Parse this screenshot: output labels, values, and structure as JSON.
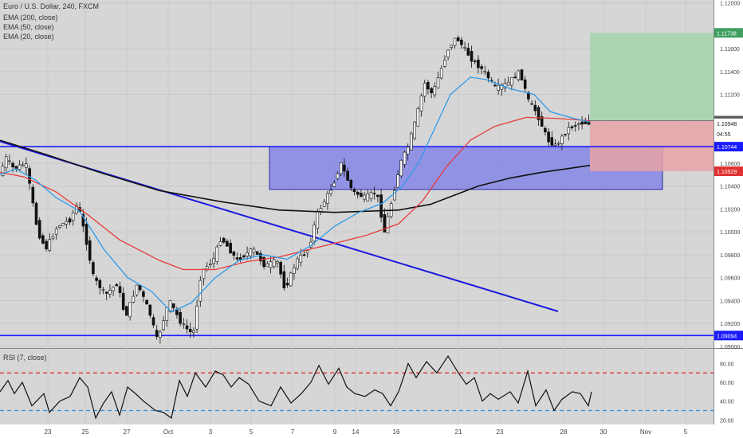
{
  "chart_data": [
    {
      "type": "line",
      "panel": "price",
      "title": "Euro / U.S. Dollar, 240, FXCM",
      "ylim": [
        1.08985,
        1.12025
      ],
      "x_ticks": [
        "23",
        "25",
        "27",
        "Oct",
        "3",
        "5",
        "7",
        "9",
        "14",
        "16",
        "21",
        "23",
        "28",
        "30",
        "Nov",
        "5"
      ],
      "y_ticks": [
        "1.12000",
        "1.11600",
        "1.11400",
        "1.11200",
        "1.10600",
        "1.10400",
        "1.10200",
        "1.10000",
        "1.09800",
        "1.09600",
        "1.09400",
        "1.09200",
        "1.09000"
      ],
      "legend": [
        "EMA (200, close)",
        "EMA (50, close)",
        "EMA (20, close)"
      ],
      "price_tags": [
        {
          "label": "1.11738",
          "value": 1.11738,
          "color": "#3f9f5f"
        },
        {
          "label": "1.10971",
          "value": 1.10971,
          "color": "#5a5a5a"
        },
        {
          "label": "1.10948",
          "value": 1.10948,
          "color": "#ffffff",
          "text_color": "#222222"
        },
        {
          "label": "04:55",
          "value": 1.10855,
          "color": "#ffffff",
          "text_color": "#222222"
        },
        {
          "label": "1.10744",
          "value": 1.10744,
          "color": "#1a1aff"
        },
        {
          "label": "1.10529",
          "value": 1.10529,
          "color": "#e03131"
        },
        {
          "label": "1.09094",
          "value": 1.09094,
          "color": "#1a1aff"
        }
      ],
      "horizontal_lines": [
        {
          "value": 1.10744,
          "color": "#1a1aff"
        },
        {
          "value": 1.09094,
          "color": "#1a1aff"
        }
      ],
      "trendline": {
        "from": [
          0,
          1.1079
        ],
        "to": [
          700,
          1.09305
        ],
        "color": "#1a1adf"
      },
      "zone": {
        "x0": 338,
        "x1": 831,
        "y0": 1.10744,
        "y1": 1.1037,
        "color": "#7b7bea"
      },
      "target_box": {
        "x0": 740,
        "x1": 895,
        "y0": 1.11738,
        "y1": 1.10971,
        "color": "#a6d5ad"
      },
      "stop_box": {
        "x0": 740,
        "x1": 895,
        "y0": 1.10971,
        "y1": 1.10529,
        "color": "#e8a3a8"
      },
      "ema200": [
        [
          0,
          1.108
        ],
        [
          60,
          1.1067
        ],
        [
          120,
          1.1053
        ],
        [
          200,
          1.1036
        ],
        [
          280,
          1.1026
        ],
        [
          350,
          1.1019
        ],
        [
          420,
          1.1017
        ],
        [
          500,
          1.1019
        ],
        [
          540,
          1.1024
        ],
        [
          570,
          1.1032
        ],
        [
          600,
          1.104
        ],
        [
          640,
          1.1047
        ],
        [
          680,
          1.1052
        ],
        [
          710,
          1.1055
        ],
        [
          740,
          1.1058
        ]
      ],
      "ema50": [
        [
          0,
          1.1052
        ],
        [
          30,
          1.1048
        ],
        [
          70,
          1.1035
        ],
        [
          110,
          1.1015
        ],
        [
          150,
          1.0993
        ],
        [
          200,
          1.0975
        ],
        [
          230,
          1.0967
        ],
        [
          270,
          1.0967
        ],
        [
          310,
          1.0974
        ],
        [
          350,
          1.0978
        ],
        [
          390,
          1.0985
        ],
        [
          420,
          1.099
        ],
        [
          460,
          1.0997
        ],
        [
          500,
          1.1007
        ],
        [
          530,
          1.1027
        ],
        [
          560,
          1.1057
        ],
        [
          590,
          1.108
        ],
        [
          620,
          1.1092
        ],
        [
          660,
          1.11
        ],
        [
          700,
          1.1099
        ],
        [
          740,
          1.1097
        ]
      ],
      "ema20": [
        [
          0,
          1.105
        ],
        [
          20,
          1.1055
        ],
        [
          45,
          1.1045
        ],
        [
          70,
          1.103
        ],
        [
          100,
          1.1018
        ],
        [
          130,
          1.0985
        ],
        [
          160,
          1.096
        ],
        [
          190,
          1.0948
        ],
        [
          215,
          1.093
        ],
        [
          240,
          1.0938
        ],
        [
          270,
          1.096
        ],
        [
          300,
          1.0975
        ],
        [
          330,
          1.098
        ],
        [
          360,
          1.0976
        ],
        [
          390,
          1.0988
        ],
        [
          420,
          1.1005
        ],
        [
          450,
          1.1017
        ],
        [
          480,
          1.1025
        ],
        [
          505,
          1.104
        ],
        [
          525,
          1.106
        ],
        [
          545,
          1.109
        ],
        [
          565,
          1.112
        ],
        [
          590,
          1.1135
        ],
        [
          610,
          1.1133
        ],
        [
          640,
          1.1125
        ],
        [
          670,
          1.112
        ],
        [
          690,
          1.1105
        ],
        [
          720,
          1.1099
        ],
        [
          740,
          1.1096
        ]
      ],
      "price_path": [
        [
          0,
          1.1045
        ],
        [
          10,
          1.1065
        ],
        [
          20,
          1.1055
        ],
        [
          35,
          1.106
        ],
        [
          50,
          1.1
        ],
        [
          60,
          1.0985
        ],
        [
          75,
          1.1005
        ],
        [
          90,
          1.101
        ],
        [
          100,
          1.1025
        ],
        [
          110,
          1.0995
        ],
        [
          120,
          1.096
        ],
        [
          135,
          1.0945
        ],
        [
          150,
          1.0955
        ],
        [
          160,
          1.0925
        ],
        [
          175,
          1.0955
        ],
        [
          190,
          1.093
        ],
        [
          200,
          1.0905
        ],
        [
          215,
          1.094
        ],
        [
          230,
          1.092
        ],
        [
          245,
          1.091
        ],
        [
          255,
          1.0965
        ],
        [
          270,
          1.0975
        ],
        [
          280,
          1.0995
        ],
        [
          300,
          1.0975
        ],
        [
          320,
          1.0985
        ],
        [
          335,
          1.097
        ],
        [
          350,
          1.0975
        ],
        [
          360,
          1.095
        ],
        [
          375,
          1.0975
        ],
        [
          390,
          1.0985
        ],
        [
          400,
          1.1015
        ],
        [
          420,
          1.104
        ],
        [
          430,
          1.106
        ],
        [
          445,
          1.1035
        ],
        [
          460,
          1.103
        ],
        [
          475,
          1.1035
        ],
        [
          485,
          1.1
        ],
        [
          495,
          1.103
        ],
        [
          505,
          1.106
        ],
        [
          515,
          1.1075
        ],
        [
          525,
          1.11
        ],
        [
          535,
          1.113
        ],
        [
          545,
          1.112
        ],
        [
          555,
          1.114
        ],
        [
          565,
          1.116
        ],
        [
          575,
          1.117
        ],
        [
          585,
          1.116
        ],
        [
          595,
          1.115
        ],
        [
          610,
          1.114
        ],
        [
          625,
          1.1125
        ],
        [
          640,
          1.113
        ],
        [
          655,
          1.114
        ],
        [
          665,
          1.1115
        ],
        [
          675,
          1.1105
        ],
        [
          690,
          1.108
        ],
        [
          700,
          1.1075
        ],
        [
          715,
          1.109
        ],
        [
          730,
          1.1095
        ],
        [
          740,
          1.1095
        ]
      ]
    },
    {
      "type": "line",
      "panel": "rsi",
      "title": "RSI (7, close)",
      "ylim": [
        16,
        94
      ],
      "y_ticks": [
        "80.00",
        "60.00",
        "40.00",
        "20.00"
      ],
      "levels": [
        {
          "value": 70,
          "color": "#e03131"
        },
        {
          "value": 30,
          "color": "#2f8fe0"
        }
      ],
      "values": [
        [
          0,
          50
        ],
        [
          10,
          62
        ],
        [
          18,
          48
        ],
        [
          28,
          60
        ],
        [
          40,
          35
        ],
        [
          55,
          48
        ],
        [
          62,
          28
        ],
        [
          75,
          40
        ],
        [
          88,
          45
        ],
        [
          100,
          65
        ],
        [
          110,
          55
        ],
        [
          120,
          22
        ],
        [
          130,
          38
        ],
        [
          140,
          50
        ],
        [
          150,
          25
        ],
        [
          160,
          55
        ],
        [
          170,
          48
        ],
        [
          180,
          40
        ],
        [
          195,
          30
        ],
        [
          205,
          28
        ],
        [
          215,
          22
        ],
        [
          225,
          62
        ],
        [
          235,
          45
        ],
        [
          245,
          70
        ],
        [
          258,
          55
        ],
        [
          270,
          72
        ],
        [
          280,
          68
        ],
        [
          290,
          55
        ],
        [
          300,
          65
        ],
        [
          312,
          58
        ],
        [
          325,
          40
        ],
        [
          340,
          35
        ],
        [
          352,
          55
        ],
        [
          365,
          38
        ],
        [
          378,
          48
        ],
        [
          390,
          60
        ],
        [
          400,
          78
        ],
        [
          412,
          58
        ],
        [
          425,
          75
        ],
        [
          435,
          55
        ],
        [
          445,
          48
        ],
        [
          458,
          45
        ],
        [
          470,
          52
        ],
        [
          480,
          48
        ],
        [
          490,
          35
        ],
        [
          500,
          50
        ],
        [
          512,
          80
        ],
        [
          522,
          65
        ],
        [
          535,
          82
        ],
        [
          548,
          70
        ],
        [
          562,
          88
        ],
        [
          575,
          70
        ],
        [
          585,
          58
        ],
        [
          595,
          65
        ],
        [
          605,
          40
        ],
        [
          615,
          48
        ],
        [
          625,
          42
        ],
        [
          640,
          50
        ],
        [
          650,
          38
        ],
        [
          662,
          72
        ],
        [
          672,
          35
        ],
        [
          685,
          52
        ],
        [
          695,
          30
        ],
        [
          705,
          42
        ],
        [
          718,
          50
        ],
        [
          728,
          48
        ],
        [
          738,
          35
        ],
        [
          742,
          50
        ]
      ]
    }
  ]
}
